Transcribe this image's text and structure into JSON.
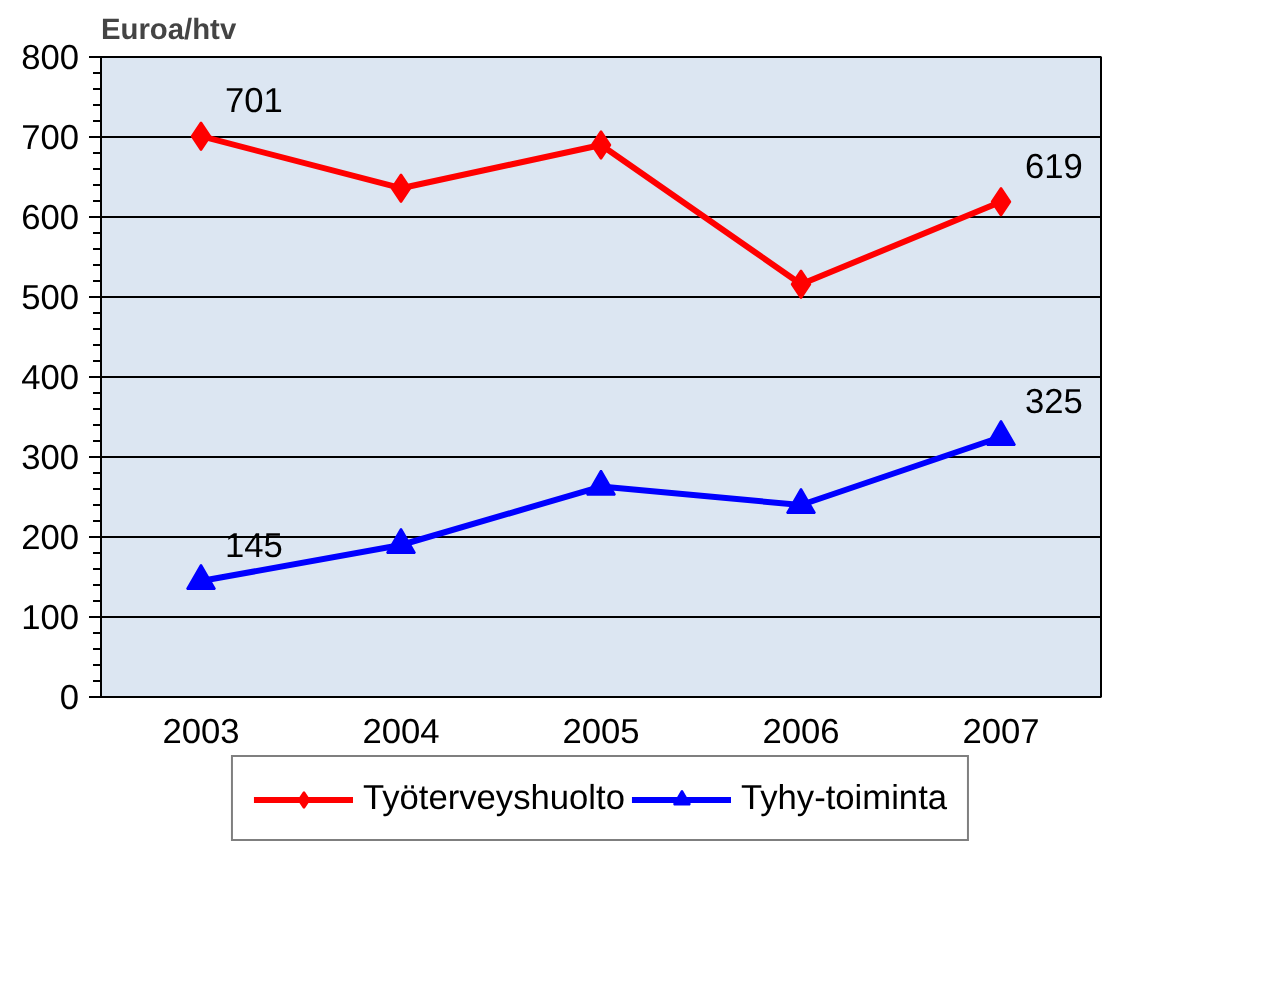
{
  "chart_data": {
    "type": "line",
    "ylabel": "Euroa/htv",
    "categories": [
      "2003",
      "2004",
      "2005",
      "2006",
      "2007"
    ],
    "series": [
      {
        "name": "Työterveyshuolto",
        "color": "#ff0000",
        "marker": "diamond",
        "values": [
          701,
          636,
          690,
          516,
          619
        ],
        "value_labels": [
          "701",
          null,
          null,
          null,
          "619"
        ]
      },
      {
        "name": "Tyhy-toiminta",
        "color": "#0000ff",
        "marker": "triangle",
        "values": [
          145,
          190,
          263,
          240,
          325
        ],
        "value_labels": [
          "145",
          null,
          null,
          null,
          "325"
        ]
      }
    ],
    "ylim": [
      0,
      800
    ],
    "yticks": [
      0,
      100,
      200,
      300,
      400,
      500,
      600,
      700,
      800
    ],
    "grid": "y",
    "legend": "bottom",
    "line_style": "solid"
  }
}
